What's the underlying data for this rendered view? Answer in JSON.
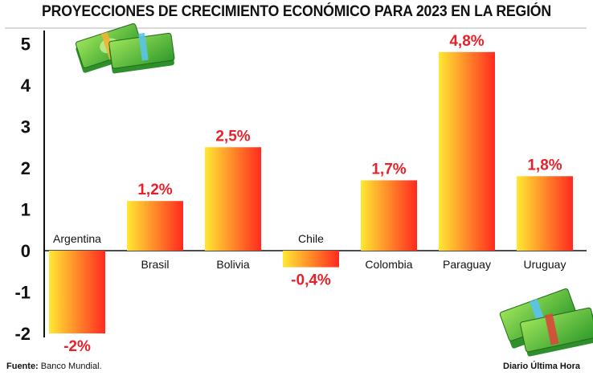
{
  "title": "PROYECCIONES DE CRECIMIENTO ECONÓMICO PARA 2023 EN LA REGIÓN",
  "footer": {
    "source_label": "Fuente:",
    "source_value": "Banco Mundial.",
    "credit": "Diario Última Hora"
  },
  "icons": [
    "money-stack-icon",
    "money-bundle-icon"
  ],
  "colors": {
    "bar_top": "#ff2a1f",
    "bar_bottom": "#ffe833",
    "label": "#e8202a"
  },
  "chart_data": {
    "type": "bar",
    "title": "PROYECCIONES DE CRECIMIENTO ECONÓMICO PARA 2023 EN LA REGIÓN",
    "xlabel": "",
    "ylabel": "",
    "categories": [
      "Argentina",
      "Brasil",
      "Bolivia",
      "Chile",
      "Colombia",
      "Paraguay",
      "Uruguay"
    ],
    "values": [
      -2,
      1.2,
      2.5,
      -0.4,
      1.7,
      4.8,
      1.8
    ],
    "data_labels": [
      "-2%",
      "1,2%",
      "2,5%",
      "-0,4%",
      "1,7%",
      "4,8%",
      "1,8%"
    ],
    "yticks": [
      "5",
      "4",
      "3",
      "2",
      "1",
      "0",
      "-1",
      "-2"
    ],
    "ylim": [
      -2,
      5
    ],
    "grid": false,
    "legend": "none"
  }
}
